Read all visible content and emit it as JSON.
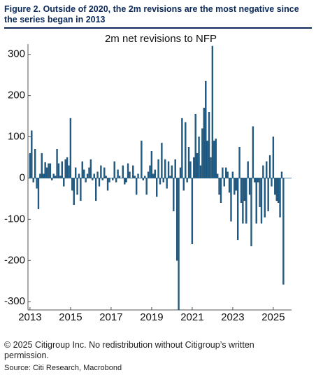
{
  "header": {
    "title": "Figure 2. Outside of 2020, the 2m revisions are the most negative since the series began in 2013"
  },
  "chart_data": {
    "type": "bar",
    "title": "2m net revisions to NFP",
    "color": "#1f5f8b",
    "x": [
      2013,
      2013.083,
      2013.167,
      2013.25,
      2013.333,
      2013.417,
      2013.5,
      2013.583,
      2013.667,
      2013.75,
      2013.833,
      2013.917,
      2014,
      2014.083,
      2014.167,
      2014.25,
      2014.333,
      2014.417,
      2014.5,
      2014.583,
      2014.667,
      2014.75,
      2014.833,
      2014.917,
      2015,
      2015.083,
      2015.167,
      2015.25,
      2015.333,
      2015.417,
      2015.5,
      2015.583,
      2015.667,
      2015.75,
      2015.833,
      2015.917,
      2016,
      2016.083,
      2016.167,
      2016.25,
      2016.333,
      2016.417,
      2016.5,
      2016.583,
      2016.667,
      2016.75,
      2016.833,
      2016.917,
      2017,
      2017.083,
      2017.167,
      2017.25,
      2017.333,
      2017.417,
      2017.5,
      2017.583,
      2017.667,
      2017.75,
      2017.833,
      2017.917,
      2018,
      2018.083,
      2018.167,
      2018.25,
      2018.333,
      2018.417,
      2018.5,
      2018.583,
      2018.667,
      2018.75,
      2018.833,
      2018.917,
      2019,
      2019.083,
      2019.167,
      2019.25,
      2019.333,
      2019.417,
      2019.5,
      2019.583,
      2019.667,
      2019.75,
      2019.833,
      2019.917,
      2020,
      2020.083,
      2020.167,
      2020.25,
      2020.333,
      2020.417,
      2020.5,
      2020.583,
      2020.667,
      2020.75,
      2020.833,
      2020.917,
      2021,
      2021.083,
      2021.167,
      2021.25,
      2021.333,
      2021.417,
      2021.5,
      2021.583,
      2021.667,
      2021.75,
      2021.833,
      2021.917,
      2022,
      2022.083,
      2022.167,
      2022.25,
      2022.333,
      2022.417,
      2022.5,
      2022.583,
      2022.667,
      2022.75,
      2022.833,
      2022.917,
      2023,
      2023.083,
      2023.167,
      2023.25,
      2023.333,
      2023.417,
      2023.5,
      2023.583,
      2023.667,
      2023.75,
      2023.833,
      2023.917,
      2024,
      2024.083,
      2024.167,
      2024.25,
      2024.333,
      2024.417,
      2024.5,
      2024.583,
      2024.667,
      2024.75,
      2024.833,
      2024.917,
      2025,
      2025.083,
      2025.167,
      2025.25,
      2025.333,
      2025.417,
      2025.5
    ],
    "values": [
      60,
      115,
      -10,
      70,
      -25,
      -75,
      10,
      60,
      10,
      38,
      25,
      35,
      35,
      -5,
      10,
      5,
      70,
      35,
      5,
      40,
      -20,
      45,
      50,
      30,
      145,
      -30,
      -65,
      25,
      -40,
      10,
      -55,
      40,
      20,
      -10,
      10,
      25,
      45,
      -5,
      10,
      -55,
      15,
      -20,
      30,
      -5,
      25,
      5,
      -30,
      -10,
      0,
      -5,
      40,
      -10,
      20,
      5,
      0,
      30,
      -15,
      -10,
      35,
      15,
      0,
      30,
      5,
      -40,
      10,
      0,
      90,
      -5,
      5,
      -40,
      15,
      30,
      65,
      10,
      20,
      -45,
      45,
      -15,
      85,
      -10,
      45,
      -25,
      40,
      5,
      30,
      -80,
      45,
      -200,
      -320,
      25,
      145,
      -30,
      135,
      -10,
      75,
      40,
      -160,
      50,
      155,
      60,
      100,
      30,
      120,
      170,
      235,
      90,
      160,
      50,
      320,
      90,
      95,
      10,
      -40,
      -60,
      25,
      -20,
      25,
      15,
      -35,
      -105,
      15,
      -40,
      -30,
      -150,
      75,
      -60,
      -110,
      -55,
      -110,
      40,
      -40,
      -165,
      125,
      -10,
      -110,
      -10,
      -70,
      -110,
      30,
      -95,
      40,
      -80,
      55,
      -20,
      100,
      -40,
      -55,
      -60,
      -95,
      15,
      -258
    ],
    "xlim": [
      2012.9,
      2025.9
    ],
    "xticks": [
      2013,
      2015,
      2017,
      2019,
      2021,
      2023,
      2025
    ],
    "ylim": [
      -320,
      325
    ],
    "yticks": [
      -300,
      -200,
      -100,
      0,
      100,
      200,
      300
    ]
  },
  "footer": {
    "copyright": "© 2025 Citigroup Inc. No redistribution without Citigroup’s written permission.",
    "source": "Source: Citi Research, Macrobond"
  }
}
